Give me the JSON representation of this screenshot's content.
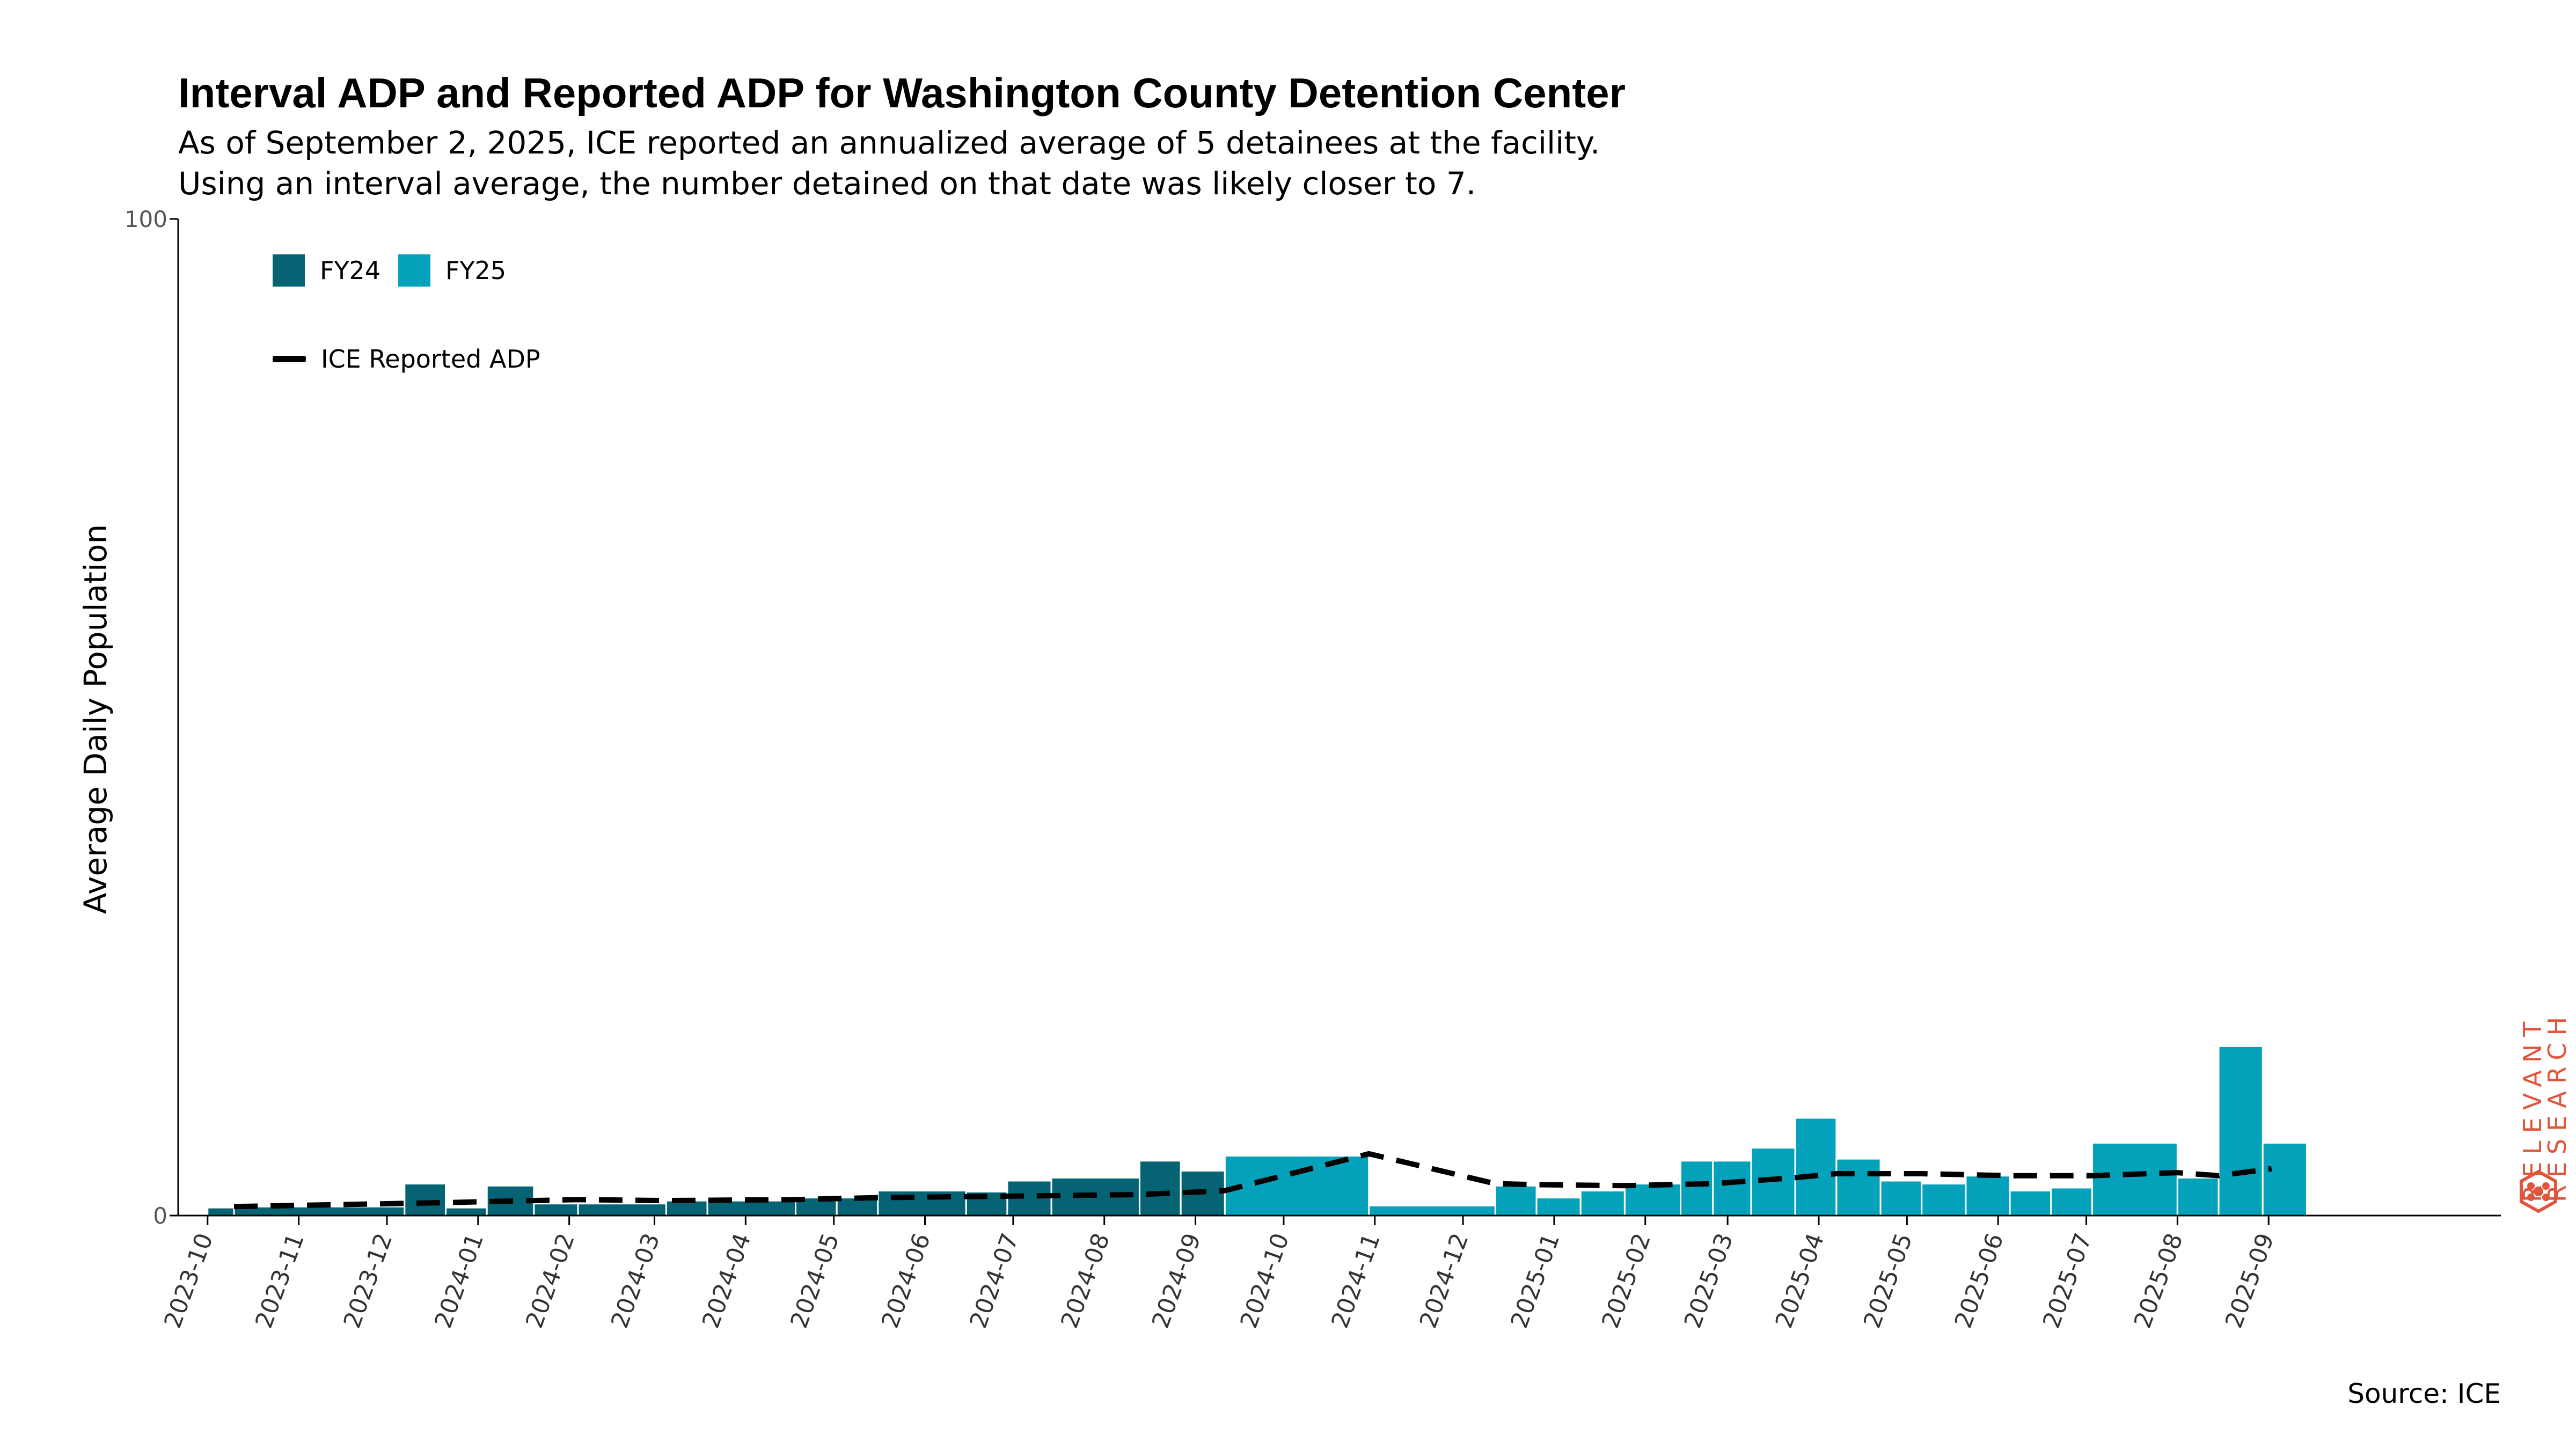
{
  "header": {
    "title": "Interval ADP and Reported ADP for Washington County Detention Center",
    "subtitle_line1": "As of September 2, 2025, ICE reported an annualized average of 5 detainees at the facility.",
    "subtitle_line2": "Using an interval average, the number detained on that date was likely closer to 7."
  },
  "footer": {
    "source": "Source: ICE",
    "brand_line1": "RELEVANT",
    "brand_line2": "RESEARCH"
  },
  "legend": {
    "fy24": "FY24",
    "fy25": "FY25",
    "line": "ICE Reported ADP"
  },
  "colors": {
    "fy24": "#056374",
    "fy25": "#04a2ba",
    "line": "#000000",
    "brand": "#e0553c"
  },
  "chart_data": {
    "type": "bar",
    "title": "Interval ADP and Reported ADP for Washington County Detention Center",
    "ylabel": "Average Daily Population",
    "xlabel": "",
    "ylim": [
      0,
      100
    ],
    "y_ticks": [
      0,
      100
    ],
    "x_ticks": [
      "2023-10",
      "2023-11",
      "2023-12",
      "2024-01",
      "2024-02",
      "2024-03",
      "2024-04",
      "2024-05",
      "2024-06",
      "2024-07",
      "2024-08",
      "2024-09",
      "2024-10",
      "2024-11",
      "2024-12",
      "2025-01",
      "2025-02",
      "2025-03",
      "2025-04",
      "2025-05",
      "2025-06",
      "2025-07",
      "2025-08",
      "2025-09"
    ],
    "grid": false,
    "legend_position": "top-left",
    "interval_adp": [
      {
        "start": "2023-10-01",
        "end": "2023-10-10",
        "value": 0.8,
        "fy": "FY24"
      },
      {
        "start": "2023-10-10",
        "end": "2023-12-07",
        "value": 0.9,
        "fy": "FY24"
      },
      {
        "start": "2023-12-07",
        "end": "2023-12-21",
        "value": 3.2,
        "fy": "FY24"
      },
      {
        "start": "2023-12-21",
        "end": "2024-01-04",
        "value": 0.8,
        "fy": "FY24"
      },
      {
        "start": "2024-01-04",
        "end": "2024-01-20",
        "value": 3.0,
        "fy": "FY24"
      },
      {
        "start": "2024-01-20",
        "end": "2024-02-04",
        "value": 1.2,
        "fy": "FY24"
      },
      {
        "start": "2024-02-04",
        "end": "2024-03-05",
        "value": 1.2,
        "fy": "FY24"
      },
      {
        "start": "2024-03-05",
        "end": "2024-03-19",
        "value": 1.5,
        "fy": "FY24"
      },
      {
        "start": "2024-03-19",
        "end": "2024-04-18",
        "value": 1.5,
        "fy": "FY24"
      },
      {
        "start": "2024-04-18",
        "end": "2024-05-02",
        "value": 1.8,
        "fy": "FY24"
      },
      {
        "start": "2024-05-02",
        "end": "2024-05-16",
        "value": 1.8,
        "fy": "FY24"
      },
      {
        "start": "2024-05-16",
        "end": "2024-06-15",
        "value": 2.5,
        "fy": "FY24"
      },
      {
        "start": "2024-06-15",
        "end": "2024-06-29",
        "value": 2.4,
        "fy": "FY24"
      },
      {
        "start": "2024-06-29",
        "end": "2024-07-14",
        "value": 3.5,
        "fy": "FY24"
      },
      {
        "start": "2024-07-14",
        "end": "2024-08-13",
        "value": 3.8,
        "fy": "FY24"
      },
      {
        "start": "2024-08-13",
        "end": "2024-08-27",
        "value": 5.5,
        "fy": "FY24"
      },
      {
        "start": "2024-08-27",
        "end": "2024-09-11",
        "value": 4.5,
        "fy": "FY24"
      },
      {
        "start": "2024-09-11",
        "end": "2024-10-30",
        "value": 6.0,
        "fy": "FY25"
      },
      {
        "start": "2024-10-30",
        "end": "2024-12-12",
        "value": 1.0,
        "fy": "FY25"
      },
      {
        "start": "2024-12-12",
        "end": "2024-12-26",
        "value": 3.0,
        "fy": "FY25"
      },
      {
        "start": "2024-12-26",
        "end": "2025-01-10",
        "value": 1.8,
        "fy": "FY25"
      },
      {
        "start": "2025-01-10",
        "end": "2025-01-25",
        "value": 2.5,
        "fy": "FY25"
      },
      {
        "start": "2025-01-25",
        "end": "2025-02-13",
        "value": 3.2,
        "fy": "FY25"
      },
      {
        "start": "2025-02-13",
        "end": "2025-02-24",
        "value": 5.5,
        "fy": "FY25"
      },
      {
        "start": "2025-02-24",
        "end": "2025-03-09",
        "value": 5.5,
        "fy": "FY25"
      },
      {
        "start": "2025-03-09",
        "end": "2025-03-24",
        "value": 6.8,
        "fy": "FY25"
      },
      {
        "start": "2025-03-24",
        "end": "2025-04-07",
        "value": 9.8,
        "fy": "FY25"
      },
      {
        "start": "2025-04-07",
        "end": "2025-04-22",
        "value": 5.7,
        "fy": "FY25"
      },
      {
        "start": "2025-04-22",
        "end": "2025-05-06",
        "value": 3.5,
        "fy": "FY25"
      },
      {
        "start": "2025-05-06",
        "end": "2025-05-21",
        "value": 3.2,
        "fy": "FY25"
      },
      {
        "start": "2025-05-21",
        "end": "2025-06-05",
        "value": 4.0,
        "fy": "FY25"
      },
      {
        "start": "2025-06-05",
        "end": "2025-06-19",
        "value": 2.5,
        "fy": "FY25"
      },
      {
        "start": "2025-06-19",
        "end": "2025-07-03",
        "value": 2.8,
        "fy": "FY25"
      },
      {
        "start": "2025-07-03",
        "end": "2025-08-01",
        "value": 7.3,
        "fy": "FY25"
      },
      {
        "start": "2025-08-01",
        "end": "2025-08-15",
        "value": 3.8,
        "fy": "FY25"
      },
      {
        "start": "2025-08-15",
        "end": "2025-08-30",
        "value": 17.0,
        "fy": "FY25"
      },
      {
        "start": "2025-08-30",
        "end": "2025-09-14",
        "value": 7.3,
        "fy": "FY25"
      }
    ],
    "reported_adp": [
      {
        "date": "2023-10-10",
        "value": 0.9
      },
      {
        "date": "2023-12-21",
        "value": 1.3
      },
      {
        "date": "2024-01-04",
        "value": 1.4
      },
      {
        "date": "2024-02-04",
        "value": 1.6
      },
      {
        "date": "2024-03-05",
        "value": 1.5
      },
      {
        "date": "2024-04-18",
        "value": 1.6
      },
      {
        "date": "2024-05-16",
        "value": 1.8
      },
      {
        "date": "2024-06-15",
        "value": 1.9
      },
      {
        "date": "2024-07-14",
        "value": 2.0
      },
      {
        "date": "2024-08-13",
        "value": 2.1
      },
      {
        "date": "2024-09-11",
        "value": 2.5
      },
      {
        "date": "2024-10-30",
        "value": 6.2
      },
      {
        "date": "2024-12-12",
        "value": 3.2
      },
      {
        "date": "2024-12-26",
        "value": 3.1
      },
      {
        "date": "2025-01-25",
        "value": 3.0
      },
      {
        "date": "2025-02-24",
        "value": 3.2
      },
      {
        "date": "2025-03-24",
        "value": 3.8
      },
      {
        "date": "2025-04-07",
        "value": 4.2
      },
      {
        "date": "2025-05-06",
        "value": 4.2
      },
      {
        "date": "2025-06-05",
        "value": 4.0
      },
      {
        "date": "2025-07-03",
        "value": 4.0
      },
      {
        "date": "2025-08-01",
        "value": 4.3
      },
      {
        "date": "2025-08-15",
        "value": 4.0
      },
      {
        "date": "2025-09-02",
        "value": 4.7
      }
    ]
  }
}
